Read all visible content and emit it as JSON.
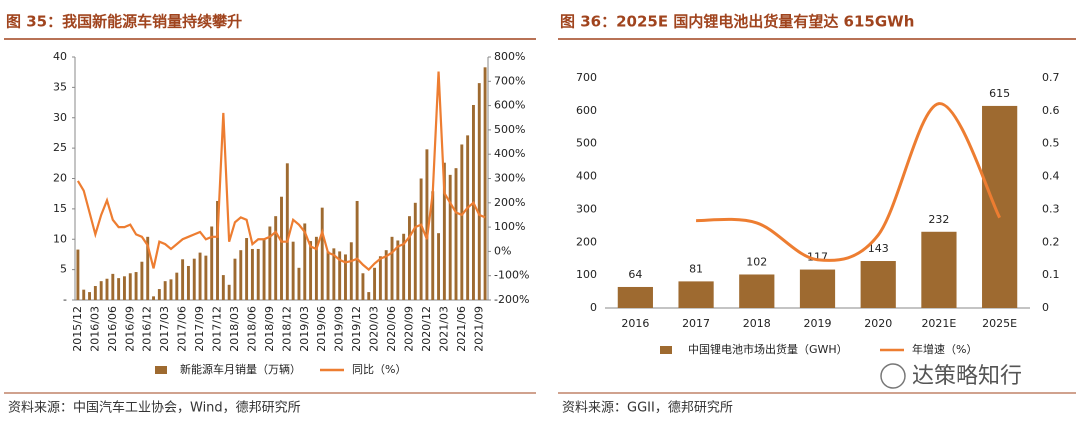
{
  "chart_data": [
    {
      "type": "combo",
      "title": "图 35：我国新能源车销量持续攀升",
      "source": "资料来源：中国汽车工业协会，Wind，德邦研究所",
      "categories": [
        "2015/12",
        null,
        null,
        "2016/03",
        null,
        null,
        "2016/06",
        null,
        null,
        "2016/09",
        null,
        null,
        "2016/12",
        null,
        null,
        "2017/03",
        null,
        null,
        "2017/06",
        null,
        null,
        "2017/09",
        null,
        null,
        "2017/12",
        null,
        null,
        "2018/03",
        null,
        null,
        "2018/06",
        null,
        null,
        "2018/09",
        null,
        null,
        "2018/12",
        null,
        null,
        "2019/03",
        null,
        null,
        "2019/06",
        null,
        null,
        "2019/09",
        null,
        null,
        "2019/12",
        null,
        null,
        "2020/03",
        null,
        null,
        "2020/06",
        null,
        null,
        "2020/09",
        null,
        null,
        "2020/12",
        null,
        null,
        "2021/03",
        null,
        null,
        "2021/06",
        null,
        null,
        "2021/09",
        null
      ],
      "series": [
        {
          "name": "新能源车月销量（万辆）",
          "type": "bar",
          "color": "#9e6a30",
          "values": [
            8.3,
            1.7,
            1.3,
            2.3,
            3.1,
            3.5,
            4.3,
            3.6,
            3.9,
            4.4,
            4.6,
            6.3,
            10.4,
            0.6,
            1.8,
            3.1,
            3.4,
            4.5,
            6.7,
            5.6,
            6.8,
            7.8,
            7.3,
            12.1,
            16.3,
            4.1,
            2.5,
            6.8,
            8.2,
            10.2,
            8.4,
            8.4,
            10.1,
            12.1,
            13.8,
            17.0,
            22.5,
            9.6,
            5.3,
            12.6,
            9.7,
            10.4,
            15.2,
            8.0,
            8.5,
            8.0,
            7.5,
            9.5,
            16.3,
            4.4,
            1.3,
            5.3,
            7.2,
            8.2,
            10.4,
            9.8,
            10.9,
            13.8,
            16.0,
            20.0,
            24.8,
            17.9,
            11.0,
            22.6,
            20.6,
            21.7,
            25.6,
            27.1,
            32.1,
            35.7,
            38.3
          ]
        },
        {
          "name": "同比（%）",
          "type": "line",
          "axis": "y2",
          "color": "#ed7d31",
          "values": [
            290,
            250,
            160,
            70,
            150,
            210,
            130,
            100,
            100,
            110,
            70,
            60,
            25,
            -70,
            40,
            30,
            10,
            30,
            50,
            60,
            70,
            80,
            50,
            60,
            60,
            570,
            40,
            120,
            140,
            130,
            30,
            50,
            50,
            60,
            80,
            40,
            40,
            130,
            110,
            80,
            20,
            10,
            80,
            -5,
            -15,
            -35,
            -45,
            -40,
            -30,
            -55,
            -75,
            -50,
            -30,
            -20,
            -5,
            20,
            30,
            60,
            100,
            110,
            50,
            240,
            740,
            240,
            200,
            160,
            150,
            180,
            200,
            150,
            140
          ]
        }
      ],
      "ylim": [
        0,
        40
      ],
      "yticks": [
        {
          "value": 0,
          "label": "-"
        },
        5,
        10,
        15,
        20,
        25,
        30,
        35,
        40
      ],
      "y2lim": [
        -200,
        800
      ],
      "y2ticks": [
        {
          "value": -200,
          "label": "-200%"
        },
        {
          "value": -100,
          "label": "-100%"
        },
        {
          "value": 0,
          "label": "0%"
        },
        {
          "value": 100,
          "label": "100%"
        },
        {
          "value": 200,
          "label": "200%"
        },
        {
          "value": 300,
          "label": "300%"
        },
        {
          "value": 400,
          "label": "400%"
        },
        {
          "value": 500,
          "label": "500%"
        },
        {
          "value": 600,
          "label": "600%"
        },
        {
          "value": 700,
          "label": "700%"
        },
        {
          "value": 800,
          "label": "800%"
        }
      ],
      "smooth": false,
      "show_values": false
    },
    {
      "type": "combo",
      "title": "图 36：2025E 国内锂电池出货量有望达 615GWh",
      "source": "资料来源：GGII，德邦研究所",
      "categories": [
        "2016",
        "2017",
        "2018",
        "2019",
        "2020",
        "2021E",
        "2025E"
      ],
      "series": [
        {
          "name": "中国锂电池市场出货量（GWH）",
          "type": "bar",
          "color": "#9e6a30",
          "values": [
            64,
            81,
            102,
            117,
            143,
            232,
            615
          ]
        },
        {
          "name": "年增速（%）",
          "type": "line",
          "axis": "y2",
          "color": "#ed7d31",
          "values": [
            null,
            0.266,
            0.259,
            0.147,
            0.222,
            0.622,
            0.275
          ]
        }
      ],
      "ylim": [
        0,
        700
      ],
      "yticks": [
        0,
        100,
        200,
        300,
        400,
        500,
        600,
        700
      ],
      "y2lim": [
        0,
        0.7
      ],
      "y2ticks": [
        0,
        0.1,
        0.2,
        0.3,
        0.4,
        0.5,
        0.6,
        0.7
      ],
      "smooth": true,
      "show_values": true
    }
  ],
  "watermark": "达策略知行"
}
